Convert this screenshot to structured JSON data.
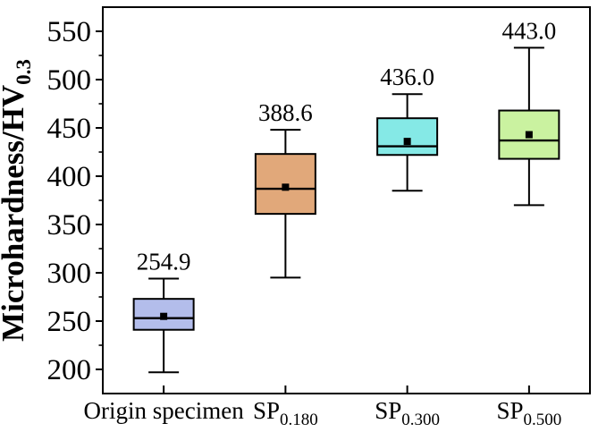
{
  "chart_data": {
    "type": "boxplot",
    "title": "",
    "ylabel_main": "Microhardness/HV",
    "ylabel_sub": "0.3",
    "xlabel": "",
    "ylim": [
      175,
      575
    ],
    "yticks": [
      200,
      250,
      300,
      350,
      400,
      450,
      500,
      550
    ],
    "minor_yticks": [
      225,
      275,
      325,
      375,
      425,
      475,
      525
    ],
    "grid": false,
    "legend": "none",
    "categories": [
      {
        "main": "Origin specimen",
        "sub": ""
      },
      {
        "main": "SP",
        "sub": "0.180"
      },
      {
        "main": "SP",
        "sub": "0.300"
      },
      {
        "main": "SP",
        "sub": "0.500"
      }
    ],
    "series": [
      {
        "name": "Origin specimen",
        "whisker_low": 197,
        "q1": 241,
        "median": 253,
        "mean": 254.9,
        "q3": 273,
        "whisker_high": 294,
        "mean_label": "254.9",
        "fill": "#b3bdeb"
      },
      {
        "name": "SP 0.180",
        "whisker_low": 295,
        "q1": 361,
        "median": 387,
        "mean": 388.6,
        "q3": 423,
        "whisker_high": 448,
        "mean_label": "388.6",
        "fill": "#e1a87a"
      },
      {
        "name": "SP 0.300",
        "whisker_low": 385,
        "q1": 422,
        "median": 431,
        "mean": 436.0,
        "q3": 460,
        "whisker_high": 485,
        "mean_label": "436.0",
        "fill": "#85e9e6"
      },
      {
        "name": "SP 0.500",
        "whisker_low": 370,
        "q1": 418,
        "median": 437,
        "mean": 443.0,
        "q3": 468,
        "whisker_high": 533,
        "mean_label": "443.0",
        "fill": "#caf2a0"
      }
    ],
    "colors": {
      "axis": "#000000",
      "median_line": "#000000",
      "mean_marker": "#000000",
      "background": "#ffffff"
    }
  }
}
